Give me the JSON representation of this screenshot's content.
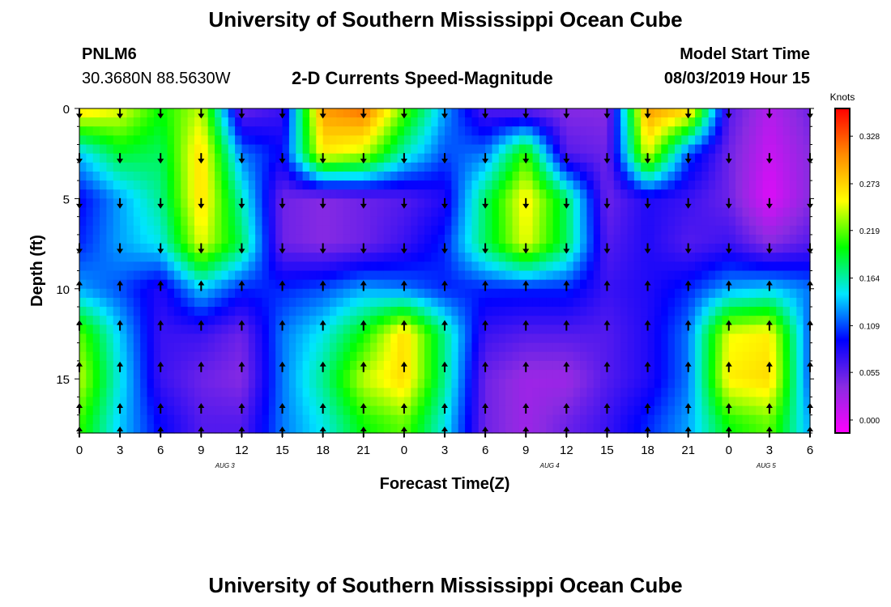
{
  "header": {
    "title": "University of Southern Mississippi Ocean Cube",
    "station_id": "PNLM6",
    "station_coords": "30.3680N 88.5630W",
    "subtitle": "2-D Currents Speed-Magnitude",
    "model_start_label": "Model Start Time",
    "model_start_value": "08/03/2019 Hour 15"
  },
  "footer": {
    "title": "University of Southern Mississippi Ocean Cube"
  },
  "chart_data": {
    "type": "heatmap",
    "title": "2-D Currents Speed-Magnitude",
    "xlabel": "Forecast Time(Z)",
    "ylabel": "Depth (ft)",
    "x_tick_labels": [
      "0",
      "3",
      "6",
      "9",
      "12",
      "15",
      "18",
      "21",
      "0",
      "3",
      "6",
      "9",
      "12",
      "15",
      "18",
      "21",
      "0",
      "3",
      "6"
    ],
    "x_hours_range": [
      0,
      54
    ],
    "date_labels": [
      {
        "label": "AUG 3",
        "hour": 11
      },
      {
        "label": "AUG 4",
        "hour": 35
      },
      {
        "label": "AUG 5",
        "hour": 51
      }
    ],
    "y_tick_labels": [
      "0",
      "5",
      "10",
      "15"
    ],
    "y_ticks": [
      0,
      5,
      10,
      15
    ],
    "ylim": [
      0,
      18
    ],
    "y_inverted": true,
    "colorbar": {
      "title": "Knots",
      "tick_labels": [
        "0.000",
        "0.055",
        "0.109",
        "0.164",
        "0.219",
        "0.273",
        "0.328"
      ],
      "ticks": [
        0.0,
        0.055,
        0.109,
        0.164,
        0.219,
        0.273,
        0.328
      ],
      "range": [
        -0.015,
        0.36
      ],
      "colors": [
        "#ff00ff",
        "#8a2be2",
        "#0000ff",
        "#00e5ff",
        "#00ff00",
        "#ffff00",
        "#ff8c00",
        "#ff0000"
      ]
    },
    "arrow_hours": [
      0,
      3,
      6,
      9,
      12,
      15,
      18,
      21,
      24,
      27,
      30,
      33,
      36,
      39,
      42,
      45,
      48,
      51,
      54
    ],
    "arrow_depths": [
      0.2,
      2.7,
      5.2,
      7.7,
      9.9,
      12.1,
      14.4,
      16.7,
      18.0
    ],
    "arrow_directions_note": "upper layer flow down-page (south), lower layer flow up-page (north)",
    "speed_grid": {
      "hours": [
        0,
        3,
        6,
        9,
        12,
        15,
        18,
        21,
        24,
        27,
        30,
        33,
        36,
        39,
        42,
        45,
        48,
        51,
        54
      ],
      "depths": [
        0,
        2.5,
        5,
        7.5,
        10,
        12.5,
        15,
        17.5
      ],
      "values": [
        [
          0.27,
          0.25,
          0.2,
          0.24,
          0.05,
          0.07,
          0.3,
          0.32,
          0.22,
          0.13,
          0.06,
          0.05,
          0.04,
          0.04,
          0.3,
          0.28,
          0.06,
          0.02,
          0.05
        ],
        [
          0.14,
          0.19,
          0.18,
          0.27,
          0.12,
          0.09,
          0.26,
          0.24,
          0.16,
          0.11,
          0.12,
          0.21,
          0.06,
          0.05,
          0.25,
          0.11,
          0.05,
          0.01,
          0.04
        ],
        [
          0.09,
          0.13,
          0.17,
          0.27,
          0.16,
          0.05,
          0.04,
          0.05,
          0.06,
          0.08,
          0.18,
          0.26,
          0.18,
          0.05,
          0.08,
          0.07,
          0.05,
          0.0,
          0.04
        ],
        [
          0.1,
          0.13,
          0.15,
          0.25,
          0.18,
          0.05,
          0.04,
          0.05,
          0.07,
          0.1,
          0.18,
          0.25,
          0.18,
          0.06,
          0.08,
          0.06,
          0.07,
          0.04,
          0.06
        ],
        [
          0.13,
          0.11,
          0.08,
          0.14,
          0.1,
          0.1,
          0.11,
          0.13,
          0.12,
          0.1,
          0.1,
          0.1,
          0.1,
          0.07,
          0.08,
          0.1,
          0.13,
          0.14,
          0.12
        ],
        [
          0.22,
          0.14,
          0.07,
          0.07,
          0.05,
          0.12,
          0.15,
          0.2,
          0.27,
          0.17,
          0.07,
          0.06,
          0.06,
          0.06,
          0.08,
          0.12,
          0.25,
          0.26,
          0.11
        ],
        [
          0.24,
          0.15,
          0.07,
          0.05,
          0.04,
          0.12,
          0.17,
          0.24,
          0.27,
          0.17,
          0.05,
          0.03,
          0.03,
          0.06,
          0.08,
          0.12,
          0.26,
          0.27,
          0.11
        ],
        [
          0.21,
          0.14,
          0.09,
          0.06,
          0.06,
          0.12,
          0.15,
          0.2,
          0.22,
          0.15,
          0.05,
          0.03,
          0.05,
          0.07,
          0.1,
          0.13,
          0.2,
          0.22,
          0.13
        ]
      ]
    }
  }
}
